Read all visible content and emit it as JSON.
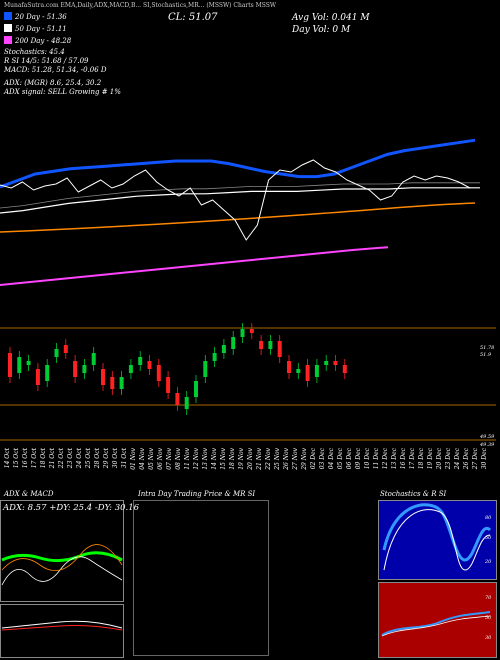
{
  "header": {
    "top_line": "MunafaSutra.com EMA,Daily,ADX,MACD,B... SI,Stochastics,MR... (MSSW) Charts MSSW",
    "close": "CL: 51.07",
    "avg_vol": "Avg Vol: 0.041  M",
    "day_vol": "Day Vol: 0   M"
  },
  "indicators": {
    "ema20": "20  Day - 51.36",
    "ema50": "50  Day - 51.11",
    "ema200": "200  Day - 48.28",
    "stochastics": "Stochastics: 45.4",
    "rsi": "R                SI 14/5: 51.68 / 57.09",
    "macd": "MACD: 51.28, 51.34, -0.06  D",
    "adx": "ADX:                          (MGR) 8.6,  25.4,  30.2",
    "adx_signal": "ADX  signal: SELL Growing # 1%"
  },
  "colors": {
    "ema20": "#ffffff",
    "ema50": "#ffffff",
    "ema200": "#ff44ff",
    "price_up": "#00cc33",
    "price_down": "#ff2222"
  },
  "price_axis": {
    "high_label": "51.78",
    "high_label2": "51.9",
    "low_label": "49.59",
    "low_label2": "49.39"
  },
  "dates": [
    "14 Oct",
    "15 Oct",
    "16 Oct",
    "17 Oct",
    "18 Oct",
    "21 Oct",
    "22 Oct",
    "23 Oct",
    "24 Oct",
    "25 Oct",
    "28 Oct",
    "29 Oct",
    "30 Oct",
    "31 Oct",
    "01 Nov",
    "04 Nov",
    "05 Nov",
    "06 Nov",
    "07 Nov",
    "08 Nov",
    "11 Nov",
    "12 Nov",
    "13 Nov",
    "14 Nov",
    "15 Nov",
    "18 Nov",
    "19 Nov",
    "20 Nov",
    "21 Nov",
    "22 Nov",
    "25 Nov",
    "26 Nov",
    "27 Nov",
    "29 Nov",
    "02 Dec",
    "03 Dec",
    "04 Dec",
    "05 Dec",
    "06 Dec",
    "09 Dec",
    "10 Dec",
    "11 Dec",
    "12 Dec",
    "13 Dec",
    "16 Dec",
    "17 Dec",
    "18 Dec",
    "19 Dec",
    "20 Dec",
    "23 Dec",
    "24 Dec",
    "26 Dec",
    "27 Dec",
    "30 Dec"
  ],
  "panels": {
    "adx_macd": {
      "title": "ADX  & MACD",
      "adx_text": "ADX: 8.57  +DY: 25.4  -DY: 30.16"
    },
    "intraday": {
      "title": "Intra  Day Trading Price  & MR                SI"
    },
    "stoch_rsi": {
      "title": "Stochastics & R                SI",
      "stoch_labels": [
        "80",
        "50",
        "20"
      ],
      "rsi_labels": [
        "70",
        "50",
        "30"
      ]
    }
  },
  "chart_data": {
    "type": "candlestick",
    "title": "",
    "series": [
      {
        "name": "20 Day",
        "values": [
          51.0,
          51.05,
          51.1,
          51.12,
          51.14,
          51.15,
          51.16,
          51.17,
          51.18,
          51.19,
          51.2,
          51.2,
          51.2,
          51.18,
          51.15,
          51.12,
          51.1,
          51.08,
          51.08,
          51.1,
          51.15,
          51.2,
          51.25,
          51.28,
          51.3,
          51.32,
          51.34,
          51.36
        ]
      },
      {
        "name": "50 Day",
        "values": [
          50.9,
          50.92,
          50.95,
          50.98,
          51.0,
          51.02,
          51.04,
          51.05,
          51.06,
          51.06,
          51.07,
          51.08,
          51.08,
          51.08,
          51.09,
          51.1,
          51.1,
          51.1,
          51.11,
          51.11,
          51.11,
          51.11
        ]
      },
      {
        "name": "200 Day",
        "values": [
          47.2,
          47.3,
          47.4,
          47.5,
          47.6,
          47.7,
          47.8,
          47.9,
          48.0,
          48.1,
          48.2,
          48.28
        ]
      }
    ],
    "candles": [
      {
        "o": 50.9,
        "c": 50.3
      },
      {
        "o": 50.4,
        "c": 50.8
      },
      {
        "o": 50.6,
        "c": 50.7
      },
      {
        "o": 50.5,
        "c": 50.1
      },
      {
        "o": 50.2,
        "c": 50.6
      },
      {
        "o": 50.8,
        "c": 51.0
      },
      {
        "o": 51.1,
        "c": 50.9
      },
      {
        "o": 50.7,
        "c": 50.3
      },
      {
        "o": 50.4,
        "c": 50.6
      },
      {
        "o": 50.6,
        "c": 50.9
      },
      {
        "o": 50.5,
        "c": 50.1
      },
      {
        "o": 50.3,
        "c": 50.0
      },
      {
        "o": 50.0,
        "c": 50.3
      },
      {
        "o": 50.4,
        "c": 50.6
      },
      {
        "o": 50.6,
        "c": 50.8
      },
      {
        "o": 50.7,
        "c": 50.5
      },
      {
        "o": 50.6,
        "c": 50.2
      },
      {
        "o": 50.3,
        "c": 49.9
      },
      {
        "o": 49.9,
        "c": 49.6
      },
      {
        "o": 49.5,
        "c": 49.8
      },
      {
        "o": 49.8,
        "c": 50.2
      },
      {
        "o": 50.3,
        "c": 50.7
      },
      {
        "o": 50.7,
        "c": 50.9
      },
      {
        "o": 50.9,
        "c": 51.1
      },
      {
        "o": 51.0,
        "c": 51.3
      },
      {
        "o": 51.3,
        "c": 51.5
      },
      {
        "o": 51.5,
        "c": 51.4
      },
      {
        "o": 51.2,
        "c": 51.0
      },
      {
        "o": 51.0,
        "c": 51.2
      },
      {
        "o": 51.2,
        "c": 50.8
      },
      {
        "o": 50.7,
        "c": 50.4
      },
      {
        "o": 50.4,
        "c": 50.5
      },
      {
        "o": 50.6,
        "c": 50.2
      },
      {
        "o": 50.3,
        "c": 50.6
      },
      {
        "o": 50.6,
        "c": 50.7
      },
      {
        "o": 50.7,
        "c": 50.6
      },
      {
        "o": 50.6,
        "c": 50.4
      }
    ]
  }
}
